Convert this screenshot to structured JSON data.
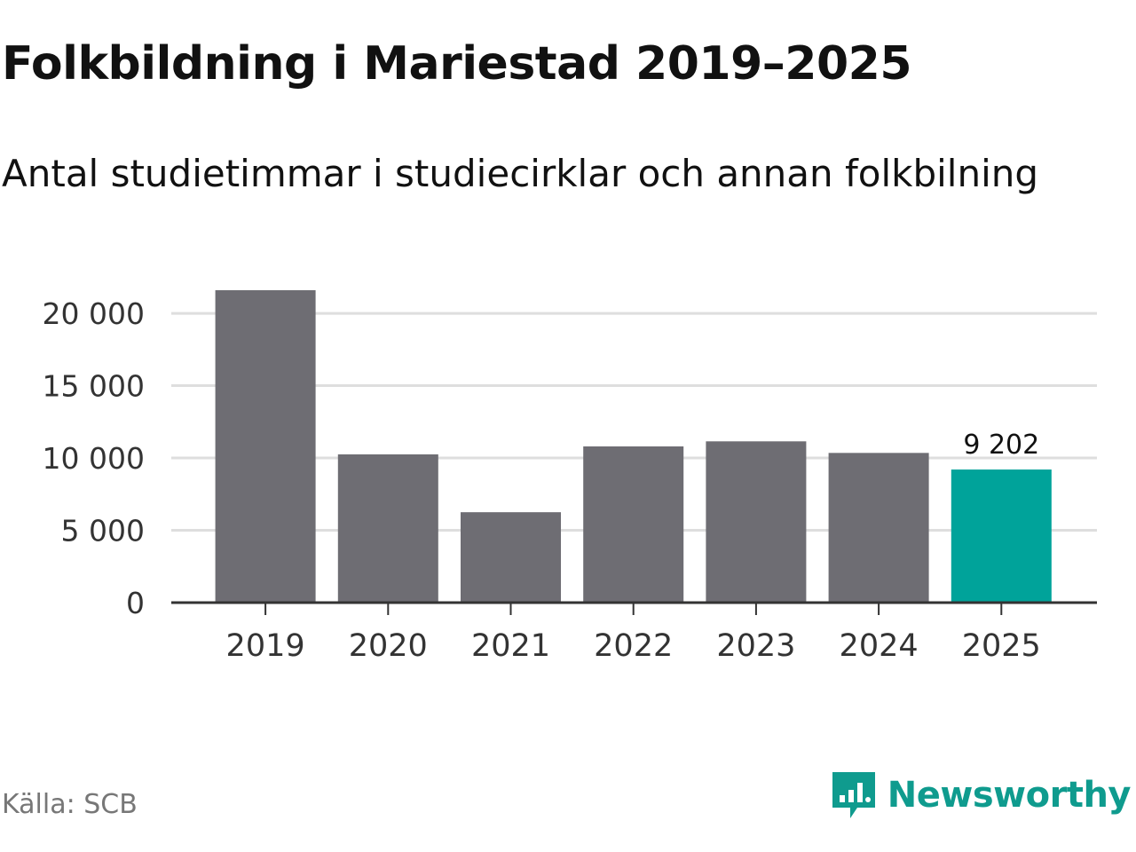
{
  "chart_data": {
    "type": "bar",
    "title": "Folkbildning i Mariestad 2019–2025",
    "subtitle": "Antal studietimmar i studiecirklar och annan folkbilning",
    "categories": [
      "2019",
      "2020",
      "2021",
      "2022",
      "2023",
      "2024",
      "2025"
    ],
    "values": [
      21600,
      10250,
      6250,
      10800,
      11150,
      10350,
      9202
    ],
    "highlight_index": 6,
    "value_labels": [
      "",
      "",
      "",
      "",
      "",
      "",
      "9 202"
    ],
    "y_ticks": [
      0,
      5000,
      10000,
      15000,
      20000
    ],
    "y_tick_labels": [
      "0",
      "5 000",
      "10 000",
      "15 000",
      "20 000"
    ],
    "ylim": [
      0,
      21600
    ],
    "grid": true,
    "xlabel": "",
    "ylabel": "",
    "colors": {
      "bar": "#6e6d73",
      "highlight": "#00a39a",
      "grid": "#dedede",
      "axis": "#333333"
    }
  },
  "footer": {
    "source": "Källa: SCB",
    "brand": "Newsworthy",
    "brand_icon": "newsworthy-logo-icon"
  }
}
